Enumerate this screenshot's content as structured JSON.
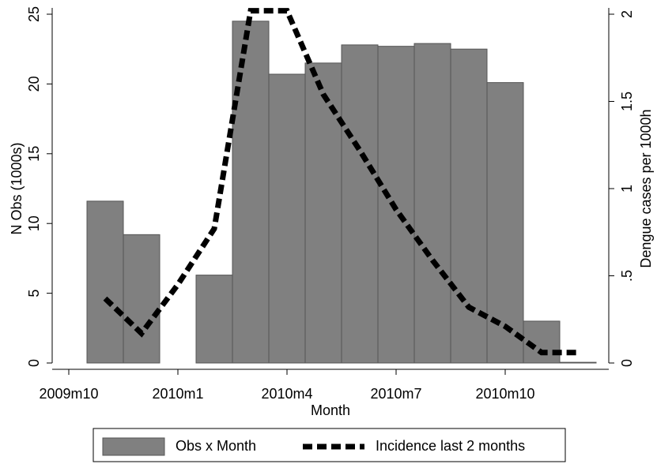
{
  "chart_data": {
    "type": "bar_line",
    "x_label": "Month",
    "y_label": "N Obs (1000s)",
    "y2_label": "Dengue cases per 1000h",
    "categories": [
      "2009m10",
      null,
      null,
      "2010m1",
      null,
      null,
      "2010m4",
      null,
      null,
      "2010m7",
      null,
      null,
      "2010m10",
      null,
      null
    ],
    "series": [
      {
        "name": "Obs x Month",
        "type": "bar",
        "color": "#808080",
        "values": [
          null,
          11.6,
          9.2,
          null,
          6.3,
          24.5,
          20.7,
          21.5,
          22.8,
          22.7,
          22.9,
          22.5,
          20.1,
          3.0,
          0.05
        ]
      },
      {
        "name": "Incidence last 2 months",
        "type": "line",
        "axis": "y2",
        "color": "#000000",
        "values": [
          null,
          0.37,
          0.17,
          0.45,
          0.77,
          2.02,
          2.02,
          1.54,
          1.22,
          0.88,
          0.59,
          0.32,
          0.21,
          0.06,
          0.06
        ]
      }
    ],
    "ylim": [
      0,
      25
    ],
    "yticks": [
      0,
      5,
      10,
      15,
      20,
      25
    ],
    "y2lim": [
      0,
      2
    ],
    "y2ticks": [
      0,
      {
        "value": 0.5,
        "label": ".5"
      },
      1,
      1.5,
      2
    ],
    "legend": "bottom"
  }
}
